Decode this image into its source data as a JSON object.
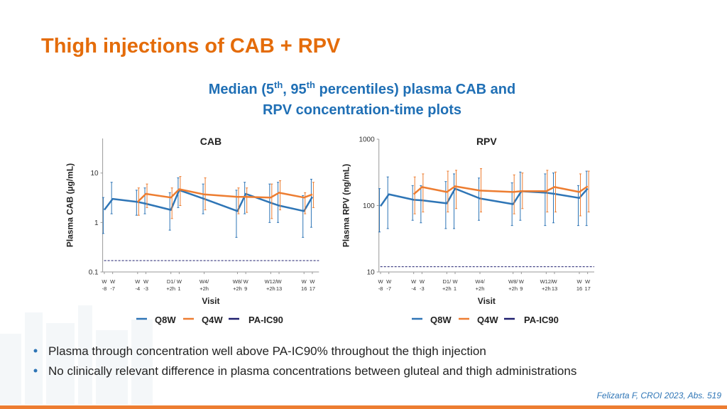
{
  "title": "Thigh injections of CAB + RPV",
  "subtitle_parts": [
    "Median (5",
    "th",
    ", 95",
    "th",
    " percentiles) plasma CAB and",
    "RPV concentration-time plots"
  ],
  "bullets": [
    "Plasma through concentration well above PA-IC90% throughout the thigh injection",
    "No clinically relevant difference in plasma concentrations between gluteal and thigh administrations"
  ],
  "citation": "Felizarta F, CROI 2023, Abs. 519",
  "chart_data": [
    {
      "type": "line",
      "title": "CAB",
      "y_label": "Plasma CAB (µg/mL)",
      "x_label": "Visit",
      "log_y": true,
      "grid": false,
      "x": [
        -8,
        -7,
        -4,
        -3,
        0,
        1,
        4,
        8,
        9,
        12,
        13,
        16,
        17
      ],
      "xlim": [
        -8.2,
        17.8
      ],
      "xticks": [
        {
          "value": -8,
          "label": "W -8"
        },
        {
          "value": -7,
          "label": "W -7"
        },
        {
          "value": -4,
          "label": "W -4"
        },
        {
          "value": -3,
          "label": "W -3"
        },
        {
          "value": 0,
          "label": "D1/ +2h"
        },
        {
          "value": 1,
          "label": "W 1"
        },
        {
          "value": 4,
          "label": "W4/ +2h"
        },
        {
          "value": 8,
          "label": "W8/ +2h"
        },
        {
          "value": 9,
          "label": "W 9"
        },
        {
          "value": 12,
          "label": "W12/ +2h"
        },
        {
          "value": 13,
          "label": "W 13"
        },
        {
          "value": 16,
          "label": "W 16"
        },
        {
          "value": 17,
          "label": "W 17"
        }
      ],
      "ylim": [
        0.1,
        50
      ],
      "yticks": [
        0.1,
        1,
        10
      ],
      "series": [
        {
          "name": "Q8W",
          "color": "#2e75b6",
          "values": [
            1.8,
            3.0,
            2.6,
            2.4,
            1.8,
            4.5,
            3.0,
            1.7,
            3.8,
            2.5,
            2.2,
            1.7,
            3.3
          ],
          "lower": [
            0.6,
            1.5,
            1.4,
            1.5,
            0.7,
            2.0,
            1.5,
            0.5,
            1.5,
            1.0,
            1.0,
            0.5,
            0.8
          ],
          "upper": [
            3.2,
            6.5,
            4.5,
            5.0,
            4.0,
            8.0,
            6.0,
            4.5,
            6.5,
            6.0,
            6.5,
            3.5,
            7.5
          ]
        },
        {
          "name": "Q4W",
          "color": "#ed7d31",
          "values": [
            null,
            null,
            2.6,
            3.8,
            3.2,
            4.7,
            3.7,
            3.3,
            3.3,
            3.2,
            4.0,
            3.2,
            3.7
          ],
          "lower": [
            null,
            null,
            1.4,
            2.0,
            1.2,
            2.2,
            1.8,
            1.5,
            1.6,
            1.2,
            1.8,
            1.5,
            2.0
          ],
          "upper": [
            null,
            null,
            5.0,
            6.0,
            5.0,
            8.5,
            8.0,
            5.0,
            5.0,
            6.0,
            7.0,
            4.0,
            6.5
          ]
        }
      ],
      "reference_line": {
        "name": "PA-IC90",
        "value": 0.17,
        "color": "#1f1f6e"
      }
    },
    {
      "type": "line",
      "title": "RPV",
      "y_label": "Plasma RPV (ng/mL)",
      "x_label": "Visit",
      "log_y": true,
      "grid": false,
      "x": [
        -8,
        -7,
        -4,
        -3,
        0,
        1,
        4,
        8,
        9,
        12,
        13,
        16,
        17
      ],
      "xlim": [
        -8.2,
        17.8
      ],
      "xticks": [
        {
          "value": -8,
          "label": "W -8"
        },
        {
          "value": -7,
          "label": "W -7"
        },
        {
          "value": -4,
          "label": "W -4"
        },
        {
          "value": -3,
          "label": "W -3"
        },
        {
          "value": 0,
          "label": "D1/ +2h"
        },
        {
          "value": 1,
          "label": "W 1"
        },
        {
          "value": 4,
          "label": "W4/ +2h"
        },
        {
          "value": 8,
          "label": "W8/ +2h"
        },
        {
          "value": 9,
          "label": "W 9"
        },
        {
          "value": 12,
          "label": "W12/ +2h"
        },
        {
          "value": 13,
          "label": "W 13"
        },
        {
          "value": 16,
          "label": "W 16"
        },
        {
          "value": 17,
          "label": "W 17"
        }
      ],
      "ylim": [
        10,
        1000
      ],
      "yticks": [
        10,
        100,
        1000
      ],
      "series": [
        {
          "name": "Q8W",
          "color": "#2e75b6",
          "values": [
            98,
            148,
            122,
            120,
            108,
            180,
            128,
            105,
            164,
            156,
            150,
            130,
            180
          ],
          "lower": [
            40,
            45,
            60,
            55,
            45,
            45,
            60,
            50,
            60,
            50,
            55,
            50,
            50
          ],
          "upper": [
            180,
            270,
            200,
            200,
            230,
            300,
            260,
            220,
            320,
            300,
            310,
            200,
            330
          ]
        },
        {
          "name": "Q4W",
          "color": "#ed7d31",
          "values": [
            null,
            null,
            148,
            190,
            160,
            195,
            168,
            160,
            165,
            165,
            190,
            160,
            195
          ],
          "lower": [
            null,
            null,
            75,
            80,
            80,
            90,
            80,
            75,
            90,
            80,
            80,
            70,
            80
          ],
          "upper": [
            null,
            null,
            270,
            300,
            330,
            340,
            360,
            290,
            310,
            340,
            320,
            300,
            330
          ]
        }
      ],
      "reference_line": {
        "name": "PA-IC90",
        "value": 12,
        "color": "#1f1f6e"
      }
    }
  ]
}
